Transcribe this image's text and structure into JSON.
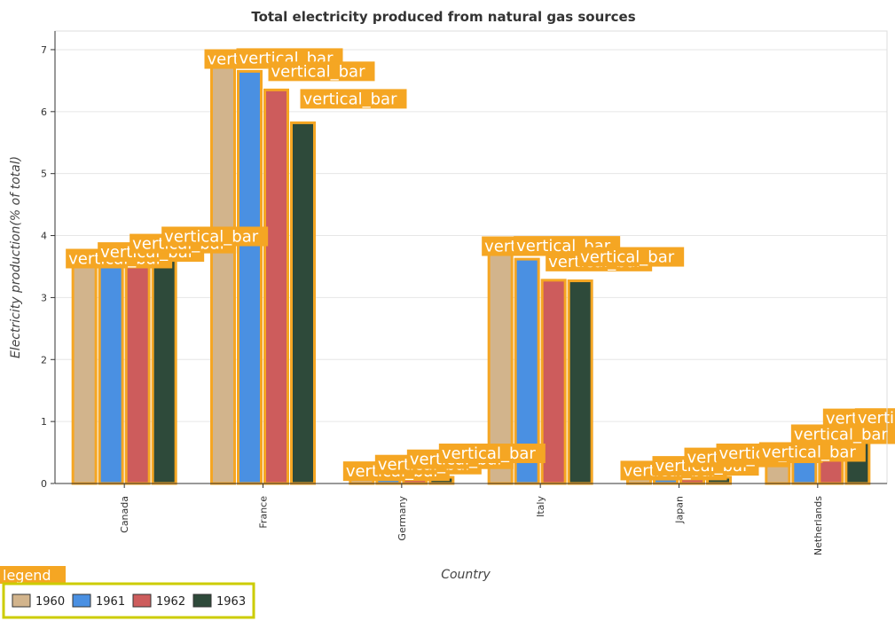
{
  "chart_data": {
    "type": "bar",
    "title": "Total electricity produced from natural gas sources",
    "xlabel": "Country",
    "ylabel": "Electricity production(% of total)",
    "categories": [
      "Canada",
      "France",
      "Germany",
      "Italy",
      "Japan",
      "Netherlands"
    ],
    "series": [
      {
        "name": "1960",
        "color": "#d2b48c",
        "values": [
          3.5,
          6.72,
          0.07,
          3.7,
          0.08,
          0.38
        ]
      },
      {
        "name": "1961",
        "color": "#4a90e2",
        "values": [
          3.52,
          6.65,
          0.09,
          3.62,
          0.07,
          0.58
        ]
      },
      {
        "name": "1962",
        "color": "#cd5c5c",
        "values": [
          3.57,
          6.35,
          0.09,
          3.28,
          0.12,
          0.75
        ]
      },
      {
        "name": "1963",
        "color": "#2e4a3a",
        "values": [
          3.6,
          5.82,
          0.1,
          3.27,
          0.1,
          0.67
        ]
      }
    ],
    "ylim": [
      0,
      7.3
    ],
    "yticks": [
      0,
      1,
      2,
      3,
      4,
      5,
      6,
      7
    ],
    "grid": true,
    "legend_position": "bottom-left",
    "annotation_label": "vertical_bar",
    "legend_label": "legend",
    "annotation_color": "#f5a623"
  }
}
